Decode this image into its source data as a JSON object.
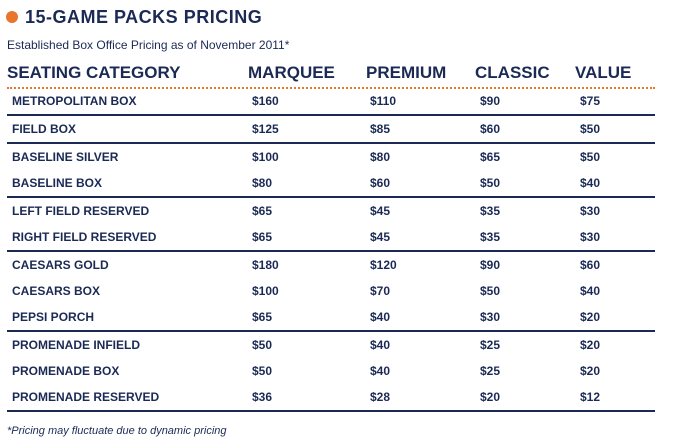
{
  "title": "15-GAME PACKS PRICING",
  "subtitle": "Established Box Office Pricing as of November 2011*",
  "columns": [
    "SEATING CATEGORY",
    "MARQUEE",
    "PREMIUM",
    "CLASSIC",
    "VALUE"
  ],
  "groups": [
    [
      [
        "METROPOLITAN BOX",
        "$160",
        "$110",
        "$90",
        "$75"
      ]
    ],
    [
      [
        "FIELD BOX",
        "$125",
        "$85",
        "$60",
        "$50"
      ]
    ],
    [
      [
        "BASELINE SILVER",
        "$100",
        "$80",
        "$65",
        "$50"
      ],
      [
        "BASELINE BOX",
        "$80",
        "$60",
        "$50",
        "$40"
      ]
    ],
    [
      [
        "LEFT FIELD RESERVED",
        "$65",
        "$45",
        "$35",
        "$30"
      ],
      [
        "RIGHT FIELD RESERVED",
        "$65",
        "$45",
        "$35",
        "$30"
      ]
    ],
    [
      [
        "CAESARS GOLD",
        "$180",
        "$120",
        "$90",
        "$60"
      ],
      [
        "CAESARS BOX",
        "$100",
        "$70",
        "$50",
        "$40"
      ],
      [
        "PEPSI PORCH",
        "$65",
        "$40",
        "$30",
        "$20"
      ]
    ],
    [
      [
        "PROMENADE INFIELD",
        "$50",
        "$40",
        "$25",
        "$20"
      ],
      [
        "PROMENADE BOX",
        "$50",
        "$40",
        "$25",
        "$20"
      ],
      [
        "PROMENADE RESERVED",
        "$36",
        "$28",
        "$20",
        "$12"
      ]
    ]
  ],
  "footnote": "*Pricing may fluctuate due to dynamic pricing",
  "colors": {
    "navy": "#1b2a55",
    "orange": "#e8762c"
  }
}
